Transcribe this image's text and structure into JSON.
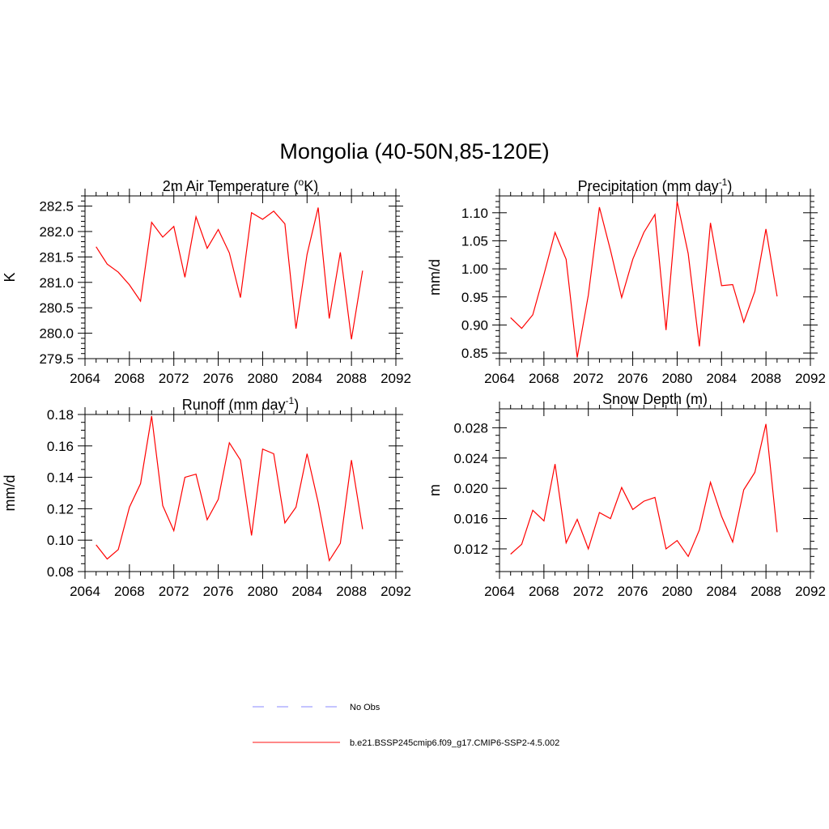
{
  "figure": {
    "title": "Mongolia (40-50N,85-120E)"
  },
  "chart_data": [
    {
      "type": "line",
      "title": "2m Air Temperature (",
      "title_sup": "o",
      "title_tail": "K)",
      "xlabel": "",
      "ylabel": "K",
      "xlim": [
        2064,
        2092
      ],
      "ylim": [
        279.5,
        282.7
      ],
      "xticks": [
        2064,
        2068,
        2072,
        2076,
        2080,
        2084,
        2088,
        2092
      ],
      "xtick_labels": [
        "2064",
        "2068",
        "2072",
        "2076",
        "2080",
        "2084",
        "2088",
        "2092"
      ],
      "yticks": [
        279.5,
        280.0,
        280.5,
        281.0,
        281.5,
        282.0,
        282.5
      ],
      "ytick_labels": [
        "279.5",
        "280.0",
        "280.5",
        "281.0",
        "281.5",
        "282.0",
        "282.5"
      ],
      "yminor_step": 0.1,
      "color": "#ff0000",
      "x": [
        2065,
        2066,
        2067,
        2068,
        2069,
        2070,
        2071,
        2072,
        2073,
        2074,
        2075,
        2076,
        2077,
        2078,
        2079,
        2080,
        2081,
        2082,
        2083,
        2084,
        2085,
        2086,
        2087,
        2088,
        2089
      ],
      "y": [
        281.7,
        281.36,
        281.2,
        280.95,
        280.63,
        282.18,
        281.89,
        282.1,
        281.1,
        282.29,
        281.67,
        282.04,
        281.58,
        280.7,
        282.37,
        282.24,
        282.4,
        282.15,
        280.09,
        281.55,
        282.47,
        280.29,
        281.59,
        279.88,
        281.23
      ]
    },
    {
      "type": "line",
      "title": "Precipitation (mm day",
      "title_sup": "-1",
      "title_tail": ")",
      "xlabel": "",
      "ylabel": "mm/d",
      "xlim": [
        2064,
        2092
      ],
      "ylim": [
        0.84,
        1.13
      ],
      "xticks": [
        2064,
        2068,
        2072,
        2076,
        2080,
        2084,
        2088,
        2092
      ],
      "xtick_labels": [
        "2064",
        "2068",
        "2072",
        "2076",
        "2080",
        "2084",
        "2088",
        "2092"
      ],
      "yticks": [
        0.85,
        0.9,
        0.95,
        1.0,
        1.05,
        1.1
      ],
      "ytick_labels": [
        "0.85",
        "0.90",
        "0.95",
        "1.00",
        "1.05",
        "1.10"
      ],
      "yminor_step": 0.01,
      "color": "#ff0000",
      "x": [
        2065,
        2066,
        2067,
        2068,
        2069,
        2070,
        2071,
        2072,
        2073,
        2074,
        2075,
        2076,
        2077,
        2078,
        2079,
        2080,
        2081,
        2082,
        2083,
        2084,
        2085,
        2086,
        2087,
        2088,
        2089
      ],
      "y": [
        0.913,
        0.894,
        0.918,
        0.99,
        1.065,
        1.017,
        0.842,
        0.953,
        1.11,
        1.033,
        0.949,
        1.017,
        1.065,
        1.097,
        0.891,
        1.12,
        1.027,
        0.862,
        1.082,
        0.97,
        0.972,
        0.905,
        0.96,
        1.071,
        0.951
      ]
    },
    {
      "type": "line",
      "title": "Runoff (mm day",
      "title_sup": "-1",
      "title_tail": ")",
      "xlabel": "",
      "ylabel": "mm/d",
      "xlim": [
        2064,
        2092
      ],
      "ylim": [
        0.08,
        0.18
      ],
      "xticks": [
        2064,
        2068,
        2072,
        2076,
        2080,
        2084,
        2088,
        2092
      ],
      "xtick_labels": [
        "2064",
        "2068",
        "2072",
        "2076",
        "2080",
        "2084",
        "2088",
        "2092"
      ],
      "yticks": [
        0.08,
        0.1,
        0.12,
        0.14,
        0.16,
        0.18
      ],
      "ytick_labels": [
        "0.08",
        "0.10",
        "0.12",
        "0.14",
        "0.16",
        "0.18"
      ],
      "yminor_step": 0.005,
      "color": "#ff0000",
      "x": [
        2065,
        2066,
        2067,
        2068,
        2069,
        2070,
        2071,
        2072,
        2073,
        2074,
        2075,
        2076,
        2077,
        2078,
        2079,
        2080,
        2081,
        2082,
        2083,
        2084,
        2085,
        2086,
        2087,
        2088,
        2089
      ],
      "y": [
        0.097,
        0.088,
        0.094,
        0.121,
        0.136,
        0.179,
        0.122,
        0.106,
        0.14,
        0.142,
        0.113,
        0.126,
        0.162,
        0.151,
        0.103,
        0.158,
        0.155,
        0.111,
        0.121,
        0.155,
        0.124,
        0.087,
        0.098,
        0.151,
        0.107
      ]
    },
    {
      "type": "line",
      "title": "Snow Depth (m)",
      "title_sup": "",
      "title_tail": "",
      "xlabel": "",
      "ylabel": "m",
      "xlim": [
        2064,
        2092
      ],
      "ylim": [
        0.009,
        0.0305
      ],
      "xticks": [
        2064,
        2068,
        2072,
        2076,
        2080,
        2084,
        2088,
        2092
      ],
      "xtick_labels": [
        "2064",
        "2068",
        "2072",
        "2076",
        "2080",
        "2084",
        "2088",
        "2092"
      ],
      "yticks": [
        0.012,
        0.016,
        0.02,
        0.024,
        0.028
      ],
      "ytick_labels": [
        "0.012",
        "0.016",
        "0.020",
        "0.024",
        "0.028"
      ],
      "yminor_step": 0.001,
      "color": "#ff0000",
      "x": [
        2065,
        2066,
        2067,
        2068,
        2069,
        2070,
        2071,
        2072,
        2073,
        2074,
        2075,
        2076,
        2077,
        2078,
        2079,
        2080,
        2081,
        2082,
        2083,
        2084,
        2085,
        2086,
        2087,
        2088,
        2089
      ],
      "y": [
        0.0113,
        0.0126,
        0.0171,
        0.0157,
        0.0232,
        0.0128,
        0.0159,
        0.012,
        0.0168,
        0.016,
        0.0201,
        0.0172,
        0.0183,
        0.0188,
        0.012,
        0.0131,
        0.011,
        0.0145,
        0.0208,
        0.0163,
        0.0129,
        0.0198,
        0.0221,
        0.0285,
        0.0142
      ]
    }
  ],
  "legend": {
    "items": [
      {
        "label": "No Obs",
        "color": "#a0a0ff",
        "style": "dashed"
      },
      {
        "label": "b.e21.BSSP245cmip6.f09_g17.CMIP6-SSP2-4.5.002",
        "color": "#ff4040",
        "style": "solid"
      }
    ]
  }
}
